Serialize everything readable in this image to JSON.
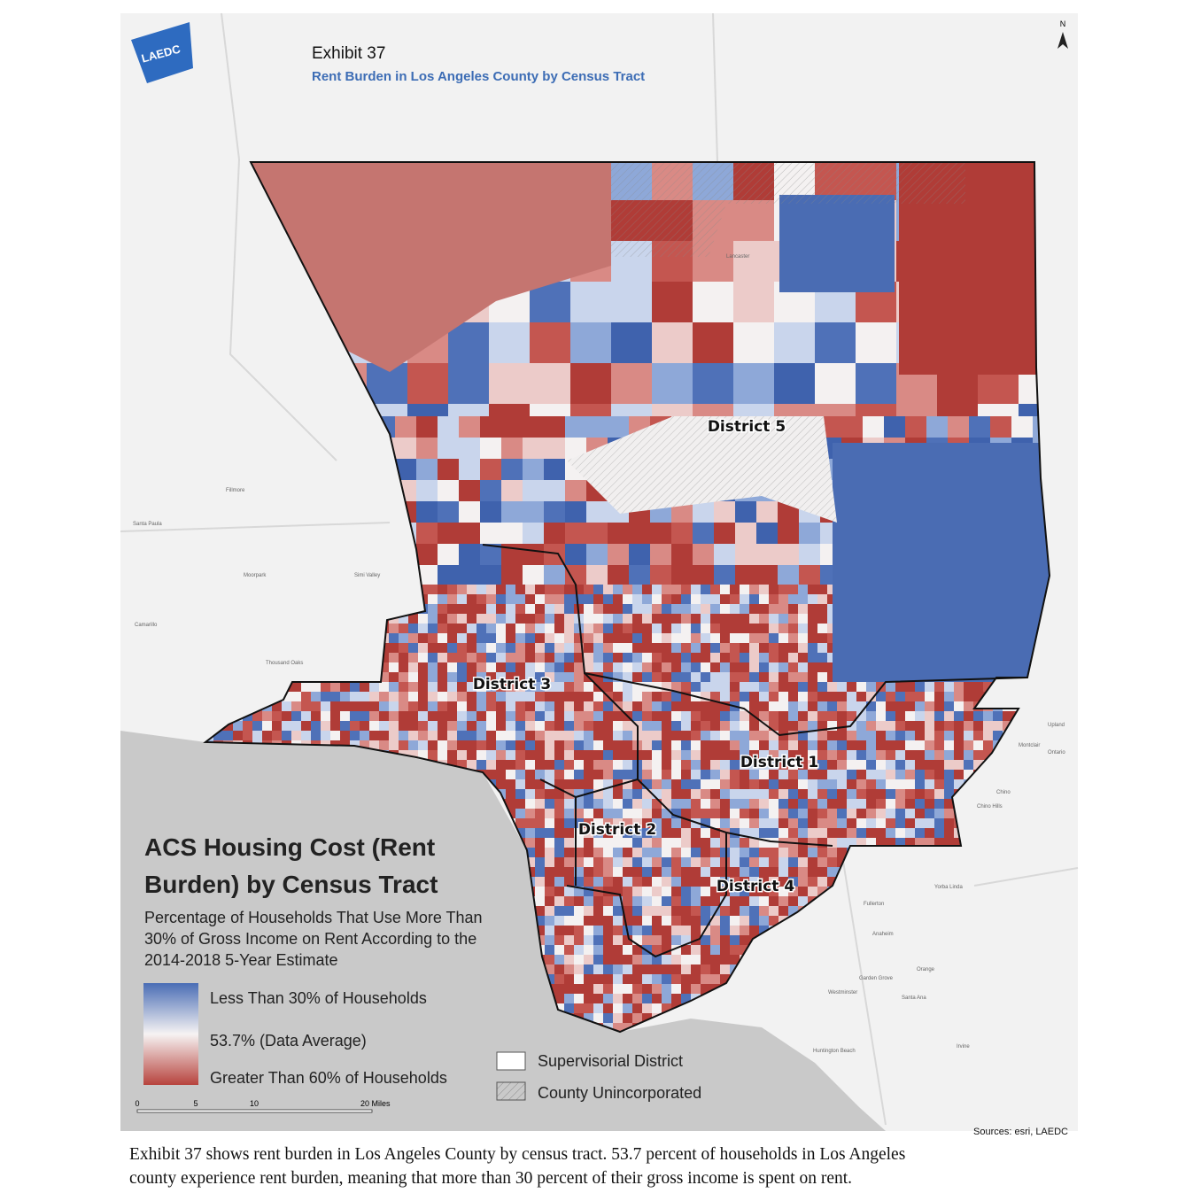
{
  "header": {
    "logo": "LAEDC",
    "exhibit": "Exhibit 37",
    "subtitle": "Rent Burden in Los Angeles County by Census Tract",
    "north": "N"
  },
  "map": {
    "districts": [
      "District 5",
      "District 3",
      "District 1",
      "District 2",
      "District 4"
    ],
    "places": [
      "Simi Valley",
      "Thousand Oaks",
      "Camarillo",
      "Moorpark",
      "Santa Paula",
      "Fillmore",
      "Lancaster",
      "Fullerton",
      "Anaheim",
      "Orange",
      "Garden Grove",
      "Westminster",
      "Santa Ana",
      "Huntington Beach",
      "Irvine",
      "Upland",
      "Montclair",
      "Ontario",
      "Chino",
      "Chino Hills",
      "Yorba Linda"
    ]
  },
  "legend": {
    "title": [
      "ACS Housing Cost (Rent",
      "Burden) by Census Tract"
    ],
    "subtitle": [
      "Percentage of Households That Use More Than",
      "30% of Gross Income on Rent According to the",
      "2014-2018 5-Year Estimate"
    ],
    "low": "Less Than 30% of Households",
    "mid": "53.7% (Data Average)",
    "high": "Greater Than 60% of Households",
    "district": "Supervisorial District",
    "unincorporated": "County Unincorporated",
    "scale": [
      "0",
      "5",
      "10",
      "20 Miles"
    ]
  },
  "sources": "Sources: esri, LAEDC",
  "caption": [
    "Exhibit 37 shows rent burden in Los Angeles County by census tract. 53.7 percent of households in Los Angeles",
    "county experience rent burden, meaning that more than 30 percent of their gross income is spent on rent."
  ]
}
